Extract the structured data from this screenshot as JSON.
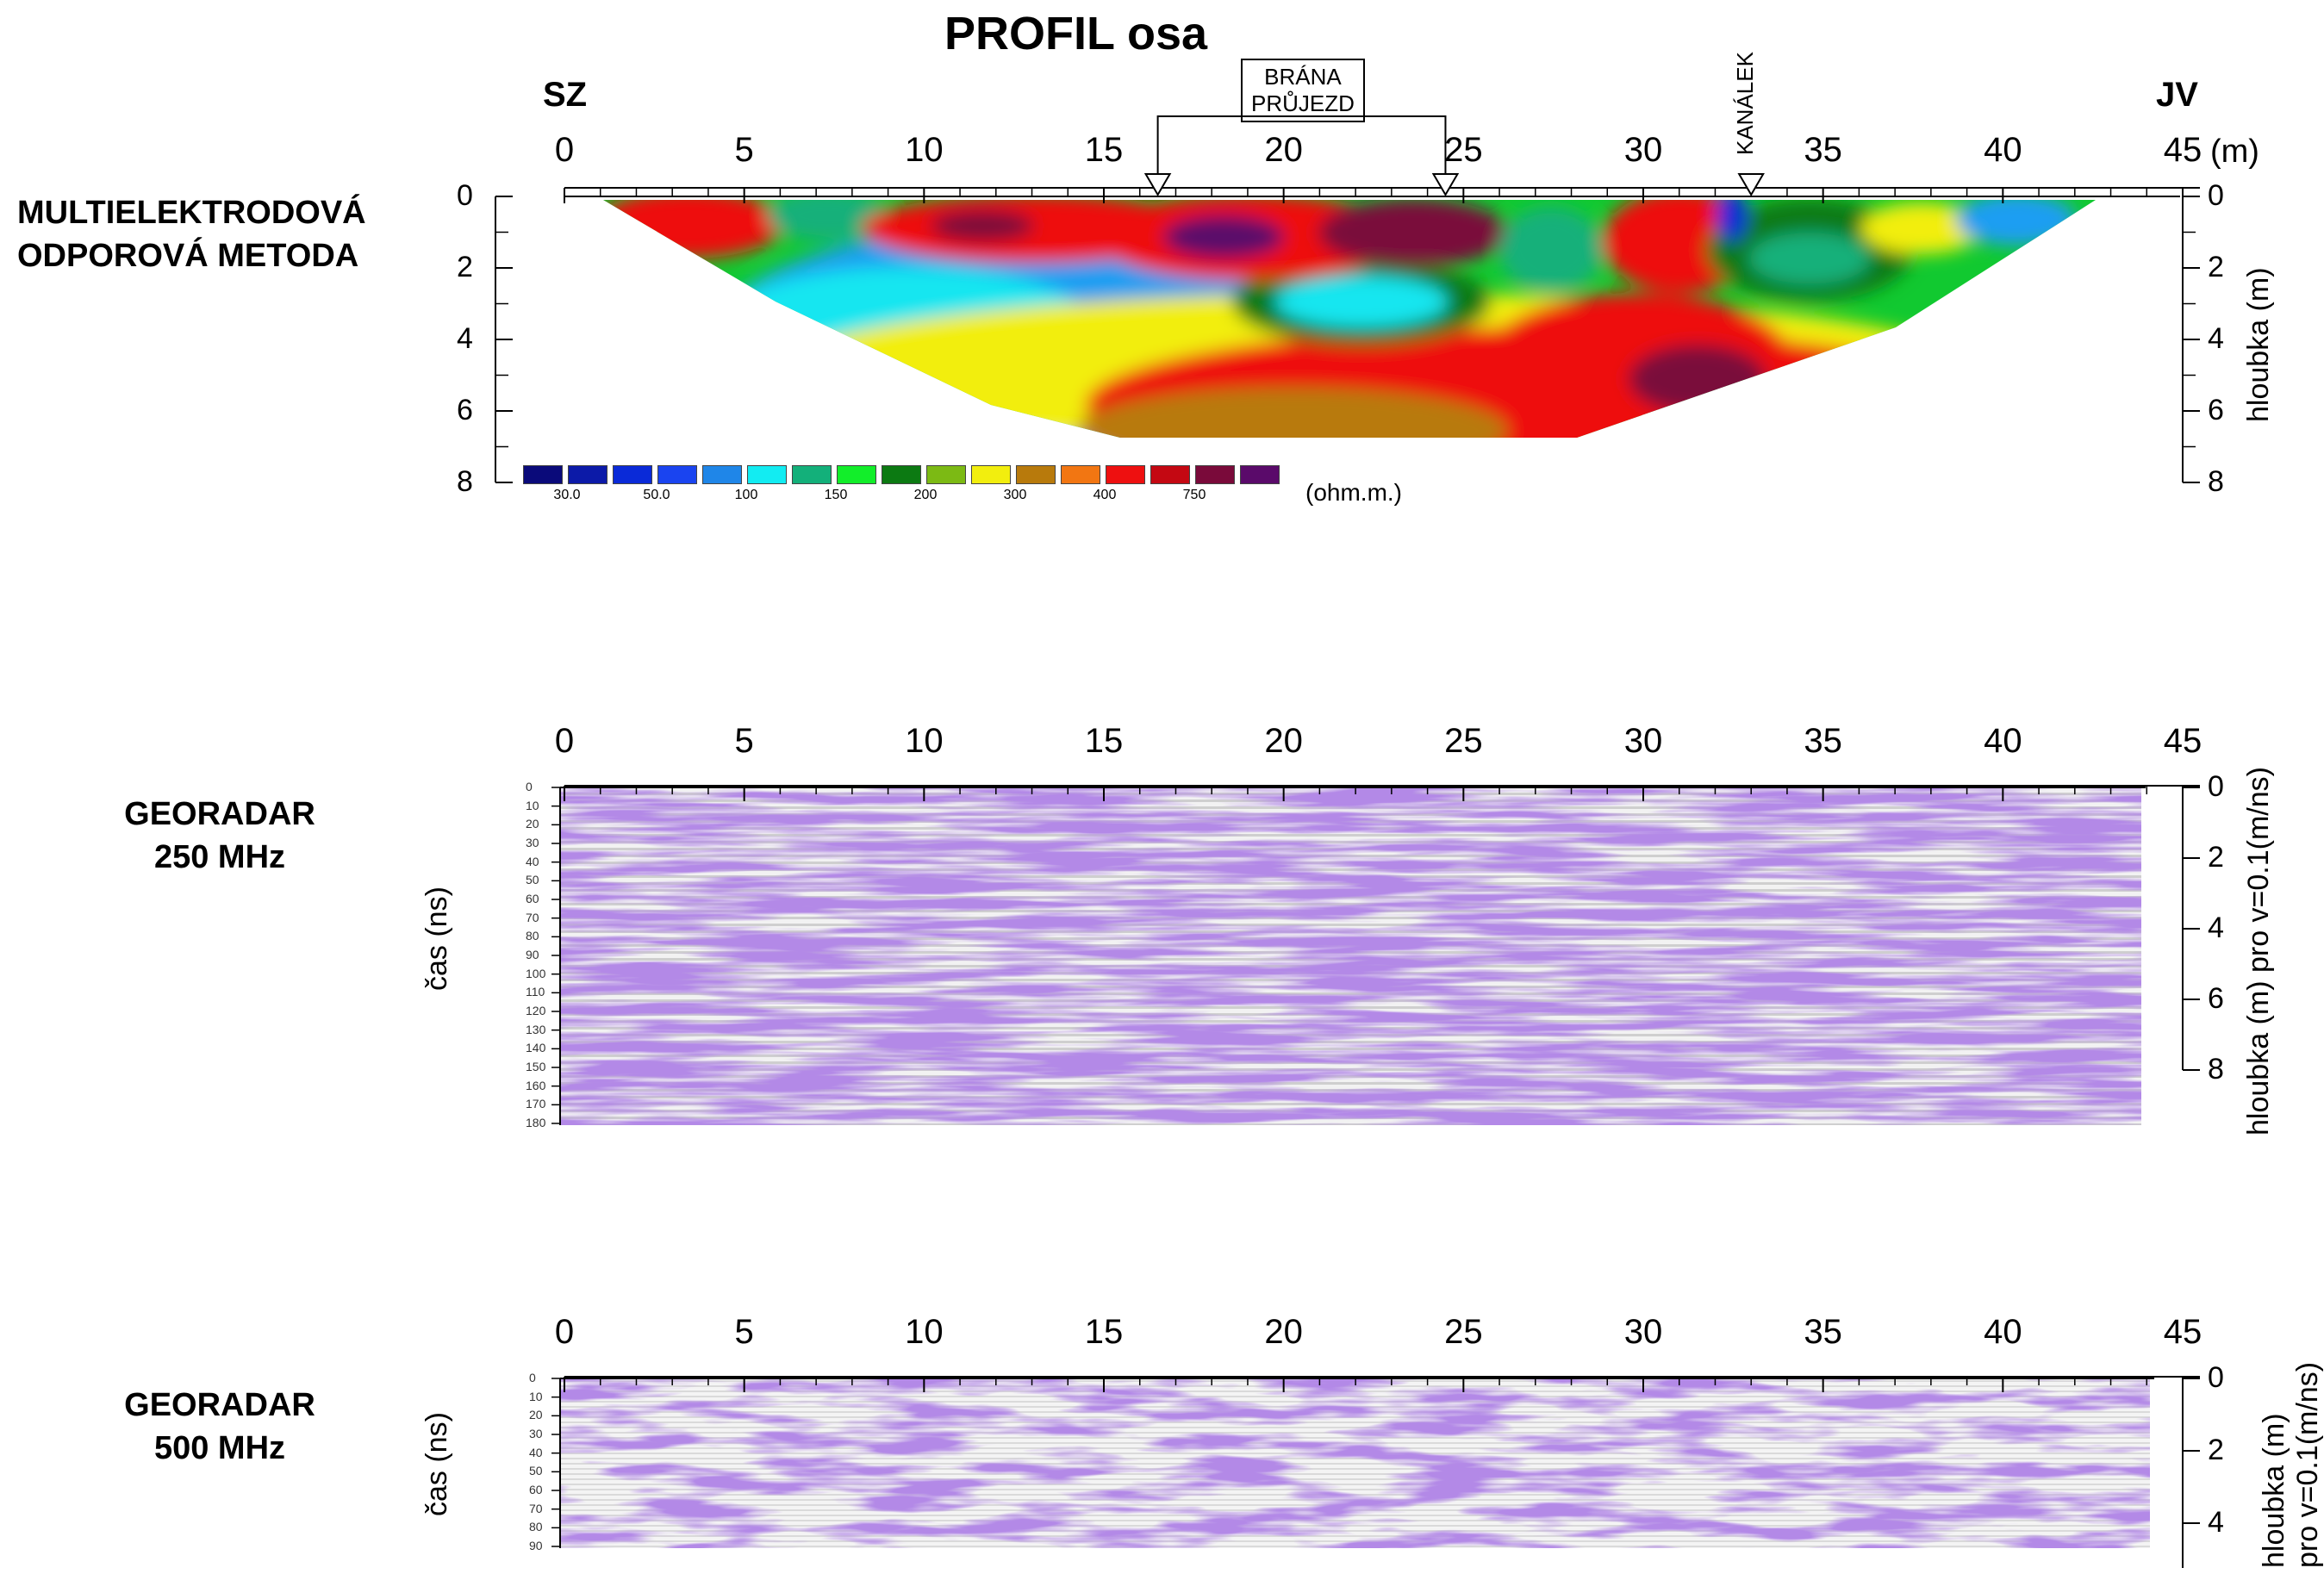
{
  "title": "PROFIL osa",
  "direction": {
    "left": "SZ",
    "right": "JV"
  },
  "x_ticks": [
    "0",
    "5",
    "10",
    "15",
    "20",
    "25",
    "30",
    "35",
    "40",
    "45"
  ],
  "x_unit": "(m)",
  "markers": {
    "brana_line1": "BRÁNA",
    "brana_line2": "PRŮJEZD",
    "kanalek": "KANÁLEK",
    "brana_start_m": 16.5,
    "brana_end_m": 24.5,
    "kanalek_m": 33
  },
  "ert": {
    "method_line1": "MULTIELEKTRODOVÁ",
    "method_line2": "ODPOROVÁ  METODA",
    "depth_ticks": [
      "0",
      "2",
      "4",
      "6",
      "8"
    ],
    "right_label": "hloubka (m)",
    "legend_unit": "(ohm.m.)",
    "legend_colors": [
      "#0a0a7a",
      "#0c1aa8",
      "#0a2ad8",
      "#1a44f0",
      "#1f86e8",
      "#12ecf2",
      "#13b07a",
      "#12ee2a",
      "#0c7a12",
      "#7cba14",
      "#f2ee0e",
      "#b87a0c",
      "#f27612",
      "#ee1010",
      "#c40812",
      "#7a0a3a",
      "#5a0a6a"
    ],
    "legend_labels": [
      "30.0",
      "50.0",
      "100",
      "150",
      "200",
      "300",
      "400",
      "750"
    ]
  },
  "gpr250": {
    "method_line1": "GEORADAR",
    "method_line2": "250 MHz",
    "x_ticks": [
      "0",
      "5",
      "10",
      "15",
      "20",
      "25",
      "30",
      "35",
      "40",
      "45"
    ],
    "left_label": "čas (ns)",
    "time_ticks": [
      "0",
      "10",
      "20",
      "30",
      "40",
      "50",
      "60",
      "70",
      "80",
      "90",
      "100",
      "110",
      "120",
      "130",
      "140",
      "150",
      "160",
      "170",
      "180"
    ],
    "depth_ticks": [
      "0",
      "2",
      "4",
      "6",
      "8"
    ],
    "right_label": "hloubka (m) pro v=0.1(m/ns)"
  },
  "gpr500": {
    "method_line1": "GEORADAR",
    "method_line2": "500 MHz",
    "x_ticks": [
      "0",
      "5",
      "10",
      "15",
      "20",
      "25",
      "30",
      "35",
      "40",
      "45"
    ],
    "left_label": "čas (ns)",
    "time_ticks": [
      "0",
      "10",
      "20",
      "30",
      "40",
      "50",
      "60",
      "70",
      "80",
      "90"
    ],
    "depth_ticks": [
      "0",
      "2",
      "4"
    ],
    "right_label_line1": "hloubka (m)",
    "right_label_line2": "pro v=0.1(m/ns)"
  }
}
